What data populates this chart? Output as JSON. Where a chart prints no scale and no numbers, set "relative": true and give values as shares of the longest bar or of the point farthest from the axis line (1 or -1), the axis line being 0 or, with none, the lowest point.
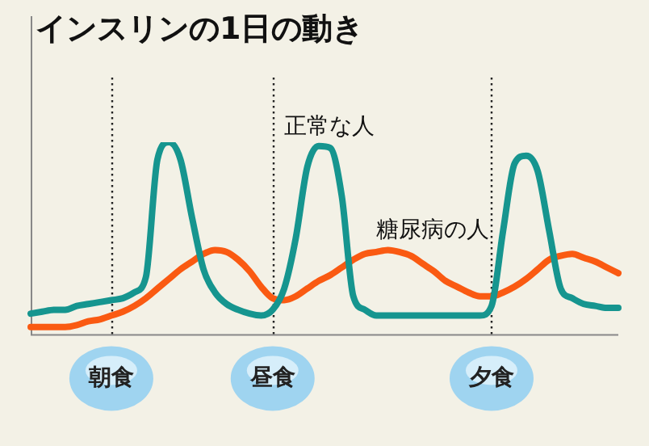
{
  "chart_data": {
    "type": "line",
    "title": "インスリンの1日の動き",
    "relative": true,
    "legend": false,
    "grid": false,
    "marker": "none",
    "line_style": "solid",
    "categories": [
      null,
      null,
      null,
      null,
      null,
      null,
      null,
      "朝食",
      null,
      null,
      null,
      null,
      null,
      null,
      null,
      null,
      null,
      null,
      null,
      null,
      null,
      "昼食",
      null,
      null,
      null,
      null,
      null,
      null,
      null,
      null,
      null,
      null,
      null,
      null,
      null,
      null,
      null,
      null,
      null,
      null,
      "夕食",
      null,
      null,
      null,
      null,
      null,
      null,
      null,
      null,
      null,
      null,
      null
    ],
    "series": [
      {
        "name": "正常な人",
        "color": "#16958f",
        "values": [
          0.11,
          0.12,
          0.13,
          0.13,
          0.15,
          0.16,
          0.17,
          0.18,
          0.19,
          0.22,
          0.3,
          0.91,
          1,
          0.91,
          0.61,
          0.34,
          0.22,
          0.16,
          0.13,
          0.11,
          0.1,
          0.13,
          0.24,
          0.5,
          0.87,
          0.98,
          0.97,
          0.72,
          0.2,
          0.13,
          0.1,
          0.1,
          0.1,
          0.1,
          0.1,
          0.1,
          0.1,
          0.1,
          0.1,
          0.1,
          0.15,
          0.54,
          0.89,
          0.93,
          0.85,
          0.54,
          0.24,
          0.19,
          0.16,
          0.15,
          0.14,
          0.14
        ]
      },
      {
        "name": "糖尿病の人",
        "color": "#fa5a12",
        "values": [
          0.04,
          0.04,
          0.04,
          0.04,
          0.05,
          0.07,
          0.08,
          0.1,
          0.12,
          0.15,
          0.19,
          0.24,
          0.29,
          0.34,
          0.38,
          0.42,
          0.44,
          0.43,
          0.39,
          0.33,
          0.25,
          0.19,
          0.18,
          0.2,
          0.24,
          0.28,
          0.31,
          0.35,
          0.39,
          0.42,
          0.43,
          0.44,
          0.43,
          0.41,
          0.37,
          0.33,
          0.28,
          0.25,
          0.22,
          0.2,
          0.2,
          0.22,
          0.25,
          0.29,
          0.34,
          0.39,
          0.41,
          0.42,
          0.4,
          0.38,
          0.35,
          0.32
        ]
      }
    ],
    "ref_lines": [
      {
        "axis": "x",
        "value": "朝食"
      },
      {
        "axis": "x",
        "value": "昼食"
      },
      {
        "axis": "x",
        "value": "夕食"
      }
    ]
  }
}
